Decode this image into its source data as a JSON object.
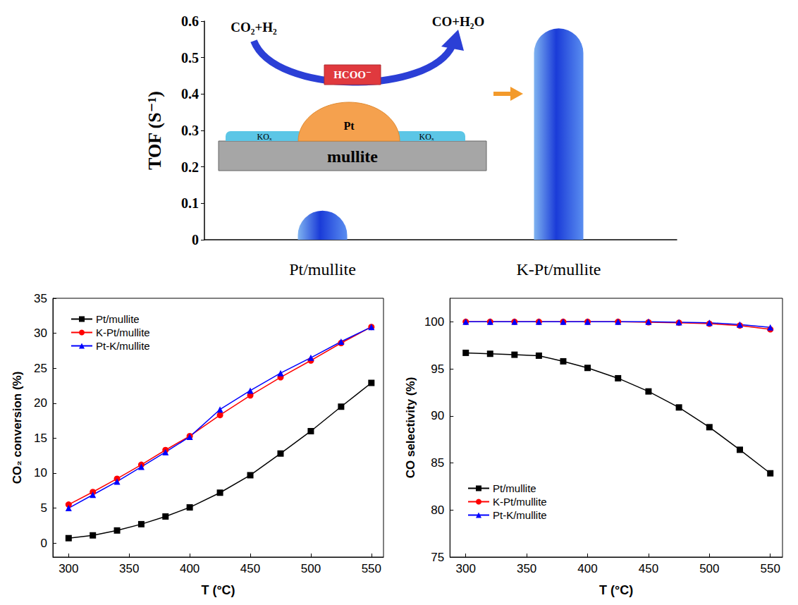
{
  "chart_data": [
    {
      "type": "bar",
      "y_label": "TOF (S⁻¹)",
      "categories": [
        "Pt/mullite",
        "K-Pt/mullite"
      ],
      "values": [
        0.08,
        0.58
      ],
      "color": "#1a3bd8",
      "ylim": [
        0,
        0.6
      ],
      "yticks": [
        0,
        0.1,
        0.2,
        0.3,
        0.4,
        0.5,
        0.6
      ],
      "grid": false,
      "annotations": [
        "CO₂+H₂",
        "CO+H₂O",
        "HCOO⁻",
        "KOₓ",
        "Pt",
        "KOₓ",
        "mullite"
      ]
    },
    {
      "type": "line",
      "x_label": "T (°C)",
      "y_label": "CO₂ conversion (%)",
      "x": [
        300,
        320,
        340,
        360,
        380,
        400,
        425,
        450,
        475,
        500,
        525,
        550
      ],
      "series": [
        {
          "name": "Pt/mullite",
          "color": "#000000",
          "marker": "square",
          "line_style": "solid",
          "values": [
            0.7,
            1.1,
            1.8,
            2.7,
            3.8,
            5.1,
            7.2,
            9.7,
            12.8,
            16.0,
            19.5,
            22.9
          ]
        },
        {
          "name": "K-Pt/mullite",
          "color": "#ff0000",
          "marker": "circle",
          "line_style": "solid",
          "values": [
            5.5,
            7.3,
            9.2,
            11.2,
            13.3,
            15.3,
            18.3,
            21.1,
            23.7,
            26.1,
            28.6,
            30.9
          ]
        },
        {
          "name": "Pt-K/mullite",
          "color": "#0000ff",
          "marker": "triangle",
          "line_style": "solid",
          "values": [
            5.0,
            6.9,
            8.8,
            10.9,
            13.0,
            15.2,
            19.1,
            21.8,
            24.3,
            26.5,
            28.8,
            30.9
          ]
        }
      ],
      "xlim": [
        287,
        560
      ],
      "xticks": [
        300,
        350,
        400,
        450,
        500,
        550
      ],
      "ylim": [
        -2,
        35
      ],
      "yticks": [
        0,
        5,
        10,
        15,
        20,
        25,
        30,
        35
      ],
      "grid": false,
      "legend": "upper left"
    },
    {
      "type": "line",
      "x_label": "T (°C)",
      "y_label": "CO selectivity (%)",
      "x": [
        300,
        320,
        340,
        360,
        380,
        400,
        425,
        450,
        475,
        500,
        525,
        550
      ],
      "series": [
        {
          "name": "Pt/mullite",
          "color": "#000000",
          "marker": "square",
          "line_style": "solid",
          "values": [
            96.7,
            96.6,
            96.5,
            96.4,
            95.8,
            95.1,
            94.0,
            92.6,
            90.9,
            88.8,
            86.4,
            83.9
          ]
        },
        {
          "name": "K-Pt/mullite",
          "color": "#ff0000",
          "marker": "circle",
          "line_style": "solid",
          "values": [
            100,
            100,
            100,
            100,
            100,
            100,
            100,
            99.95,
            99.9,
            99.8,
            99.6,
            99.2
          ]
        },
        {
          "name": "Pt-K/mullite",
          "color": "#0000ff",
          "marker": "triangle",
          "line_style": "solid",
          "values": [
            100,
            100,
            100,
            100,
            100,
            100,
            100,
            100,
            99.95,
            99.9,
            99.7,
            99.4
          ]
        }
      ],
      "xlim": [
        287,
        560
      ],
      "xticks": [
        300,
        350,
        400,
        450,
        500,
        550
      ],
      "ylim": [
        75,
        102.5
      ],
      "yticks": [
        75,
        80,
        85,
        90,
        95,
        100
      ],
      "grid": false,
      "legend": "lower left"
    }
  ]
}
